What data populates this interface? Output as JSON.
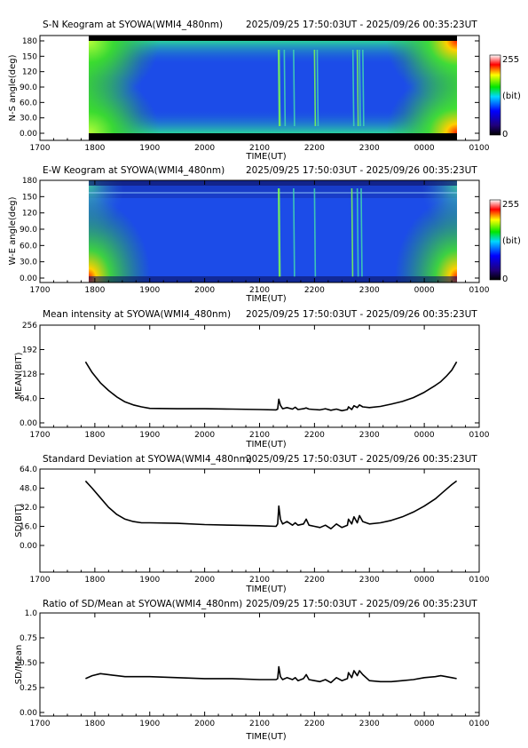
{
  "chart_data": [
    {
      "type": "heatmap",
      "title": "S-N Keogram at SYOWA(WMI4_480nm)",
      "period": "2025/09/25 17:50:03UT - 2025/09/26 00:35:23UT",
      "xlabel": "TIME(UT)",
      "ylabel": "N-S angle(deg)",
      "x_ticks": [
        "1700",
        "1800",
        "1900",
        "2000",
        "2100",
        "2200",
        "2300",
        "0000",
        "0100"
      ],
      "y_ticks": [
        "0.00",
        "30.0",
        "60.0",
        "90.0",
        "120",
        "150",
        "180"
      ],
      "colorbar": {
        "min_label": "0",
        "max_label": "255",
        "unit": "(bit)"
      },
      "xlim_hours": [
        17,
        25
      ],
      "ylim": [
        0,
        180
      ],
      "data_start_hour": 17.834,
      "data_end_hour": 24.59,
      "bright_events_hour": [
        21.35,
        21.45,
        21.62,
        22.0,
        22.05,
        22.7,
        22.78,
        22.82,
        22.88
      ]
    },
    {
      "type": "heatmap",
      "title": "E-W Keogram at SYOWA(WMI4_480nm)",
      "period": "2025/09/25 17:50:03UT - 2025/09/26 00:35:23UT",
      "xlabel": "TIME(UT)",
      "ylabel": "W-E angle(deg)",
      "x_ticks": [
        "1700",
        "1800",
        "1900",
        "2000",
        "2100",
        "2200",
        "2300",
        "0000",
        "0100"
      ],
      "y_ticks": [
        "0.00",
        "30.0",
        "60.0",
        "90.0",
        "120",
        "150",
        "180"
      ],
      "colorbar": {
        "min_label": "0",
        "max_label": "255",
        "unit": "(bit)"
      },
      "xlim_hours": [
        17,
        25
      ],
      "ylim": [
        0,
        180
      ],
      "data_start_hour": 17.834,
      "data_end_hour": 24.59,
      "bright_events_hour": [
        21.35,
        21.62,
        22.0,
        22.68,
        22.78,
        22.85
      ]
    },
    {
      "type": "line",
      "title": "Mean intensity at SYOWA(WMI4_480nm)",
      "period": "2025/09/25 17:50:03UT - 2025/09/26 00:35:23UT",
      "xlabel": "TIME(UT)",
      "ylabel": "MEAN(BIT)",
      "x_ticks": [
        "1700",
        "1800",
        "1900",
        "2000",
        "2100",
        "2200",
        "2300",
        "0000",
        "0100"
      ],
      "y_ticks": [
        "0.00",
        "64.0",
        "128",
        "192",
        "256"
      ],
      "xlim_hours": [
        17,
        25
      ],
      "ylim": [
        0,
        256
      ],
      "series": [
        {
          "x_hours": [
            17.83,
            17.95,
            18.1,
            18.25,
            18.4,
            18.55,
            18.7,
            18.85,
            19.0,
            19.5,
            20.0,
            20.5,
            21.0,
            21.3,
            21.33,
            21.35,
            21.38,
            21.42,
            21.5,
            21.6,
            21.65,
            21.7,
            21.8,
            21.85,
            21.9,
            22.0,
            22.1,
            22.2,
            22.3,
            22.4,
            22.5,
            22.6,
            22.62,
            22.68,
            22.72,
            22.78,
            22.82,
            22.88,
            23.0,
            23.2,
            23.4,
            23.6,
            23.8,
            24.0,
            24.2,
            24.3,
            24.4,
            24.5,
            24.59
          ],
          "values": [
            160,
            132,
            105,
            85,
            68,
            55,
            47,
            42,
            38,
            37,
            37,
            36,
            35,
            34,
            36,
            62,
            46,
            37,
            40,
            36,
            41,
            35,
            37,
            39,
            36,
            35,
            34,
            37,
            33,
            36,
            32,
            35,
            42,
            35,
            45,
            40,
            47,
            42,
            40,
            43,
            49,
            56,
            66,
            80,
            98,
            108,
            122,
            138,
            160
          ]
        }
      ]
    },
    {
      "type": "line",
      "title": "Standard Deviation at SYOWA(WMI4_480nm)",
      "period": "2025/09/25 17:50:03UT - 2025/09/26 00:35:23UT",
      "xlabel": "TIME(UT)",
      "ylabel": "SD(BIT)",
      "x_ticks": [
        "1700",
        "1800",
        "1900",
        "2000",
        "2100",
        "2200",
        "2300",
        "0000",
        "0100"
      ],
      "y_ticks": [
        "0.00",
        "16.0",
        "32.0",
        "48.0",
        "64.0"
      ],
      "xlim_hours": [
        17,
        25
      ],
      "ylim": [
        0,
        64
      ],
      "series": [
        {
          "x_hours": [
            17.83,
            17.95,
            18.1,
            18.25,
            18.4,
            18.55,
            18.7,
            18.85,
            19.0,
            19.5,
            20.0,
            20.5,
            21.0,
            21.3,
            21.33,
            21.35,
            21.38,
            21.42,
            21.5,
            21.6,
            21.65,
            21.7,
            21.8,
            21.85,
            21.9,
            22.0,
            22.1,
            22.2,
            22.3,
            22.4,
            22.5,
            22.6,
            22.62,
            22.68,
            22.72,
            22.78,
            22.82,
            22.88,
            23.0,
            23.2,
            23.4,
            23.6,
            23.8,
            24.0,
            24.2,
            24.3,
            24.4,
            24.5,
            24.59
          ],
          "values": [
            54,
            48,
            40,
            32,
            26,
            22,
            20,
            19,
            19,
            18.5,
            17.5,
            17,
            16.5,
            16,
            18,
            33,
            22,
            18,
            20,
            17,
            19,
            17,
            18,
            22,
            17,
            16,
            15,
            17,
            14,
            18,
            15,
            17,
            22,
            18,
            24,
            19,
            25,
            20,
            18,
            19,
            21,
            24,
            28,
            33,
            39,
            43,
            47,
            51,
            54
          ]
        }
      ]
    },
    {
      "type": "line",
      "title": "Ratio of SD/Mean at SYOWA(WMI4_480nm)",
      "period": "2025/09/25 17:50:03UT - 2025/09/26 00:35:23UT",
      "xlabel": "TIME(UT)",
      "ylabel": "SD/Mean",
      "x_ticks": [
        "1700",
        "1800",
        "1900",
        "2000",
        "2100",
        "2200",
        "2300",
        "0000",
        "0100"
      ],
      "y_ticks": [
        "0.00",
        "0.25",
        "0.50",
        "0.75",
        "1.0"
      ],
      "xlim_hours": [
        17,
        25
      ],
      "ylim": [
        0,
        1
      ],
      "series": [
        {
          "x_hours": [
            17.83,
            17.95,
            18.1,
            18.25,
            18.4,
            18.55,
            18.7,
            18.85,
            19.0,
            19.5,
            20.0,
            20.5,
            21.0,
            21.3,
            21.33,
            21.35,
            21.38,
            21.42,
            21.5,
            21.6,
            21.65,
            21.7,
            21.8,
            21.85,
            21.9,
            22.0,
            22.1,
            22.2,
            22.3,
            22.4,
            22.5,
            22.6,
            22.62,
            22.68,
            22.72,
            22.78,
            22.82,
            22.88,
            23.0,
            23.2,
            23.4,
            23.6,
            23.8,
            24.0,
            24.2,
            24.3,
            24.4,
            24.5,
            24.59
          ],
          "values": [
            0.34,
            0.37,
            0.39,
            0.38,
            0.37,
            0.36,
            0.36,
            0.36,
            0.36,
            0.35,
            0.34,
            0.34,
            0.33,
            0.33,
            0.34,
            0.46,
            0.36,
            0.33,
            0.35,
            0.33,
            0.35,
            0.32,
            0.34,
            0.38,
            0.33,
            0.32,
            0.31,
            0.33,
            0.3,
            0.35,
            0.32,
            0.34,
            0.4,
            0.35,
            0.42,
            0.37,
            0.42,
            0.38,
            0.32,
            0.31,
            0.31,
            0.32,
            0.33,
            0.35,
            0.36,
            0.37,
            0.36,
            0.35,
            0.34
          ]
        }
      ]
    }
  ]
}
